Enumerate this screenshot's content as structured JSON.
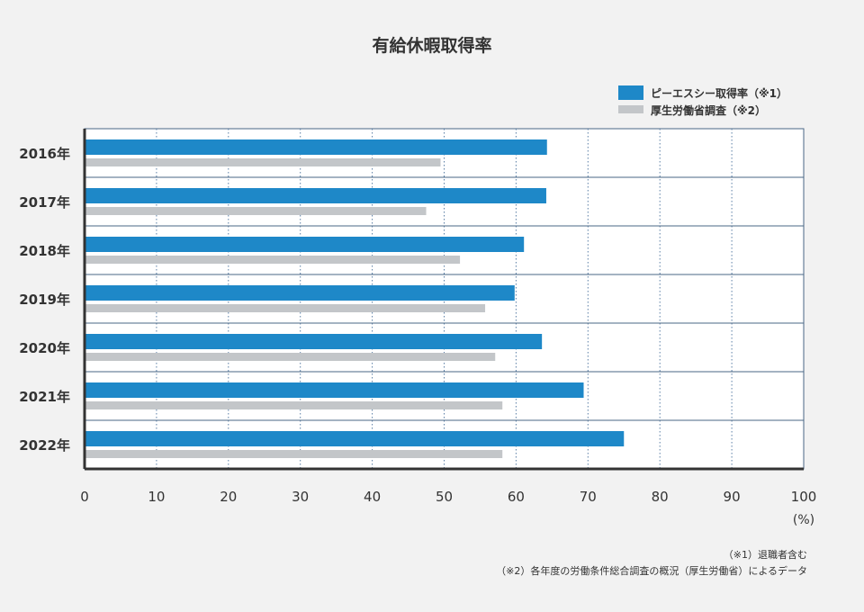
{
  "chart_data": {
    "type": "bar",
    "orientation": "horizontal",
    "title": "有給休暇取得率",
    "categories": [
      "2016年",
      "2017年",
      "2018年",
      "2019年",
      "2020年",
      "2021年",
      "2022年"
    ],
    "series": [
      {
        "name": "ピーエスシー取得率（※1）",
        "color": "#1e88c8",
        "values": [
          64.3,
          64.2,
          61.1,
          59.8,
          63.6,
          69.4,
          75.0
        ]
      },
      {
        "name": "厚生労働省調査（※2）",
        "color": "#c3c6c9",
        "values": [
          49.5,
          47.5,
          52.2,
          55.7,
          57.1,
          58.1,
          58.1
        ]
      }
    ],
    "x_ticks": [
      "0",
      "10",
      "20",
      "30",
      "40",
      "50",
      "60",
      "70",
      "80",
      "90",
      "100"
    ],
    "xlim": [
      0,
      100
    ],
    "xunit": "(%)",
    "grid": true,
    "legend_position": "top-right",
    "notes": [
      "（※1）退職者含む",
      "（※2）各年度の労働条件総合調査の概況（厚生労働省）によるデータ"
    ]
  },
  "colors": {
    "background": "#f2f2f2",
    "plot_background": "#ffffff",
    "axis": "#333333",
    "grid": "#5b7fa6",
    "separator": "#4a6785"
  }
}
